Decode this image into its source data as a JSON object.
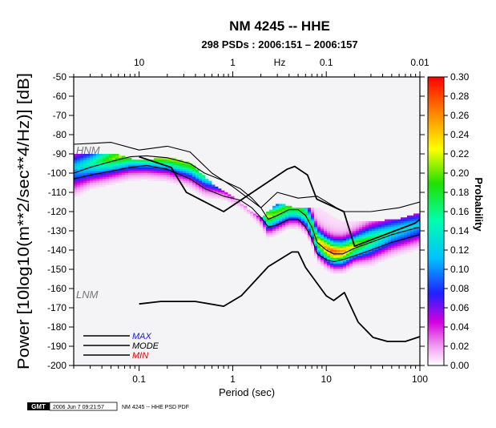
{
  "chart_data": {
    "type": "line",
    "title": "NM 4245 -- HHE",
    "subtitle": "298 PSDs : 2006:151 – 2006:157",
    "xlabel": "Period (sec)",
    "ylabel": "Power [10log10(m**2/sec**4/Hz)] [dB]",
    "top_axis_label": "Hz",
    "x_scale": "log",
    "xlim": [
      0.02,
      100
    ],
    "ylim": [
      -200,
      -50
    ],
    "x_ticks": [
      {
        "value": 0.1,
        "label": "0.1"
      },
      {
        "value": 1,
        "label": "1"
      },
      {
        "value": 10,
        "label": "10"
      },
      {
        "value": 100,
        "label": "100"
      }
    ],
    "top_ticks": [
      {
        "value": 0.1,
        "label": "10"
      },
      {
        "value": 1,
        "label": "1"
      },
      {
        "value": 10,
        "label": "0.1"
      },
      {
        "value": 100,
        "label": "0.01"
      }
    ],
    "y_ticks": [
      -50,
      -60,
      -70,
      -80,
      -90,
      -100,
      -110,
      -120,
      -130,
      -140,
      -150,
      -160,
      -170,
      -180,
      -190,
      -200
    ],
    "colorbar": {
      "label": "Probability",
      "range": [
        0,
        0.3
      ],
      "ticks": [
        "0.30",
        "0.28",
        "0.26",
        "0.24",
        "0.22",
        "0.20",
        "0.18",
        "0.16",
        "0.14",
        "0.12",
        "0.10",
        "0.08",
        "0.06",
        "0.04",
        "0.02",
        "0.00"
      ]
    },
    "annotations": [
      {
        "text": "HNM",
        "x": 0.022,
        "y": -89
      },
      {
        "text": "LNM",
        "x": 0.022,
        "y": -165
      }
    ],
    "legend": {
      "placement": "bottom-left",
      "items": [
        {
          "label": "MAX",
          "color": "#1a1acc"
        },
        {
          "label": "MODE",
          "color": "#000000"
        },
        {
          "label": "MIN",
          "color": "#dd0000"
        }
      ]
    },
    "series": [
      {
        "name": "HNM",
        "x": [
          0.1,
          0.22,
          0.32,
          0.8,
          3.8,
          4.6,
          6.3,
          7.9,
          15.4,
          20,
          89,
          100
        ],
        "y": [
          -91.5,
          -97,
          -110,
          -120,
          -98,
          -96.5,
          -101,
          -113.5,
          -120,
          -138,
          -126,
          -124
        ]
      },
      {
        "name": "LNM",
        "x": [
          0.1,
          0.17,
          0.4,
          0.8,
          1.24,
          2.4,
          4.3,
          5,
          6,
          10,
          12,
          15.6,
          21.9,
          31.6,
          45,
          70,
          100
        ],
        "y": [
          -168,
          -166.7,
          -166.7,
          -169.2,
          -163.7,
          -148.6,
          -141,
          -141,
          -149,
          -163.8,
          -166.2,
          -162.1,
          -177.5,
          -185.4,
          -187.5,
          -187.5,
          -185
        ]
      },
      {
        "name": "MAX",
        "x": [
          0.02,
          0.05,
          0.1,
          0.2,
          0.35,
          0.6,
          1,
          2,
          3,
          5,
          8,
          15,
          30,
          60,
          100
        ],
        "y": [
          -85,
          -84,
          -88,
          -86,
          -89,
          -100,
          -107,
          -118,
          -110,
          -113,
          -112,
          -120,
          -120,
          -118,
          -115
        ]
      },
      {
        "name": "MODE",
        "x": [
          0.02,
          0.03,
          0.05,
          0.08,
          0.12,
          0.2,
          0.35,
          0.5,
          0.8,
          1.2,
          1.6,
          2,
          2.4,
          3,
          4,
          5,
          6,
          7,
          8,
          10,
          12,
          15,
          20,
          30,
          50,
          100
        ],
        "y": [
          -100,
          -97,
          -94,
          -91.5,
          -91,
          -92,
          -95,
          -100,
          -104,
          -108,
          -113,
          -118,
          -124,
          -122,
          -119,
          -119,
          -122,
          -128,
          -136,
          -140,
          -142,
          -142,
          -139,
          -136,
          -132,
          -128
        ]
      },
      {
        "name": "MIN",
        "x": [
          0.02,
          0.03,
          0.05,
          0.08,
          0.12,
          0.2,
          0.35,
          0.5,
          0.8,
          1.2,
          1.6,
          2,
          2.4,
          3,
          4,
          5,
          6,
          7,
          8,
          10,
          12,
          15,
          20,
          30,
          50,
          100
        ],
        "y": [
          -103,
          -101,
          -99,
          -97,
          -96,
          -98,
          -103,
          -108,
          -112,
          -114,
          -118,
          -123,
          -128,
          -127,
          -124,
          -124,
          -128,
          -134,
          -142,
          -145,
          -146,
          -145,
          -143,
          -140,
          -136,
          -132
        ]
      }
    ],
    "pdf_density": [
      {
        "x": [
          0.02,
          0.03,
          0.05,
          0.08,
          0.12,
          0.2,
          0.35,
          0.5,
          0.8,
          1.2,
          1.6,
          2,
          2.4,
          3,
          4,
          5,
          6,
          7,
          8,
          10,
          12,
          15,
          20,
          30,
          50,
          100
        ],
        "y": [
          -99,
          -96.5,
          -93.5,
          -91,
          -90.5,
          -91.5,
          -95,
          -100,
          -104,
          -108,
          -113,
          -118,
          -124,
          -122,
          -119,
          -119,
          -122,
          -128,
          -136,
          -140,
          -142,
          -142,
          -139,
          -136,
          -132,
          -128
        ],
        "spread": [
          6,
          5,
          5,
          5,
          5,
          5,
          5,
          5,
          4,
          4,
          4,
          4,
          4,
          4,
          4,
          4,
          4,
          4,
          4,
          4,
          4,
          4,
          4,
          5,
          5,
          5
        ],
        "peak": [
          0.1,
          0.13,
          0.18,
          0.2,
          0.22,
          0.22,
          0.2,
          0.18,
          0.16,
          0.16,
          0.17,
          0.18,
          0.2,
          0.18,
          0.18,
          0.18,
          0.16,
          0.16,
          0.2,
          0.24,
          0.26,
          0.24,
          0.2,
          0.16,
          0.12,
          0.1
        ]
      }
    ]
  },
  "footer": {
    "logo": "GMT",
    "timestamp": "2006 Jun  7 09:21:57",
    "caption": "NM 4245 -- HHE PSD PDF"
  }
}
